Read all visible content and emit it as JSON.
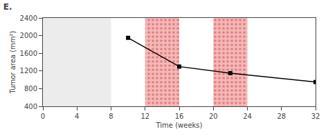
{
  "chart_data": {
    "type": "line",
    "title": "E.",
    "xlabel": "Time (weeks)",
    "ylabel": "Tumor area (mm²)",
    "x": [
      10,
      16,
      22,
      32
    ],
    "values": [
      1950,
      1300,
      1150,
      950
    ],
    "color": "#000000",
    "marker": "square",
    "xlim": [
      0,
      32
    ],
    "ylim": [
      400,
      2400
    ],
    "xticks": [
      0,
      4,
      8,
      12,
      16,
      20,
      24,
      28,
      32
    ],
    "yticks": [
      400,
      800,
      1200,
      1600,
      2000,
      2400
    ],
    "grid": false,
    "bands": [
      {
        "x": [
          0,
          8
        ],
        "color": "#e0e0e0"
      },
      {
        "x": [
          12,
          16
        ],
        "color": "#f5b8b8",
        "pattern_color": "#e08080"
      },
      {
        "x": [
          20,
          24
        ],
        "color": "#f5b8b8",
        "pattern_color": "#e08080"
      }
    ]
  }
}
